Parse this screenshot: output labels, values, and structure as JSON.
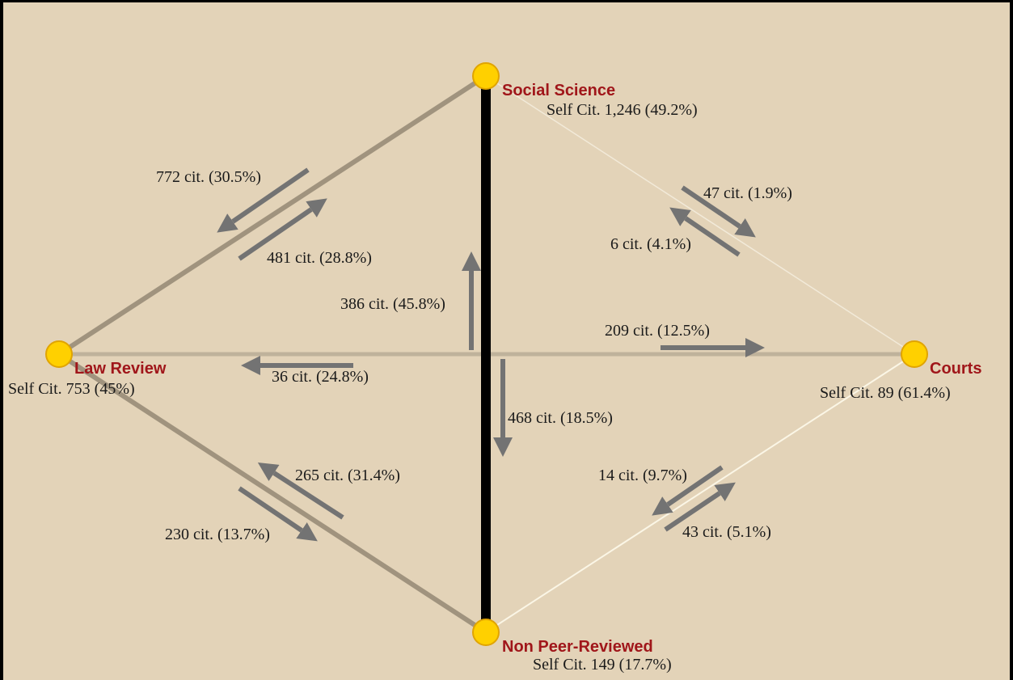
{
  "colors": {
    "background": "#e3d3b8",
    "node_fill": "#ffd000",
    "node_stroke": "#e0a400",
    "node_label": "#a0161a",
    "arrow": "#737373",
    "edge_law_social": "#a0937e",
    "edge_law_nonpeer": "#a0937e",
    "edge_law_courts": "#bfb29b",
    "edge_social_nonpeer": "#000000",
    "edge_social_courts": "#f2ead9",
    "edge_courts_nonpeer": "#fbf6e6"
  },
  "nodes": {
    "social": {
      "name": "Social Science",
      "self": "Self Cit. 1,246 (49.2%)"
    },
    "law": {
      "name": "Law Review",
      "self": "Self Cit. 753 (45%)"
    },
    "courts": {
      "name": "Courts",
      "self": "Self Cit. 89 (61.4%)"
    },
    "nonpeer": {
      "name": "Non Peer-Reviewed",
      "self": "Self Cit. 149 (17.7%)"
    }
  },
  "flows": {
    "social_to_law": "772 cit. (30.5%)",
    "law_to_social": "481 cit. (28.8%)",
    "social_to_courts": "47 cit. (1.9%)",
    "courts_to_social": "6 cit. (4.1%)",
    "nonpeer_to_social": "386 cit. (45.8%)",
    "law_to_courts": "209 cit. (12.5%)",
    "courts_to_law": "36 cit. (24.8%)",
    "social_to_nonpeer": "468 cit. (18.5%)",
    "nonpeer_to_law": "265 cit. (31.4%)",
    "law_to_nonpeer": "230 cit. (13.7%)",
    "courts_to_nonpeer": "14 cit. (9.7%)",
    "nonpeer_to_courts": "43 cit. (5.1%)"
  }
}
